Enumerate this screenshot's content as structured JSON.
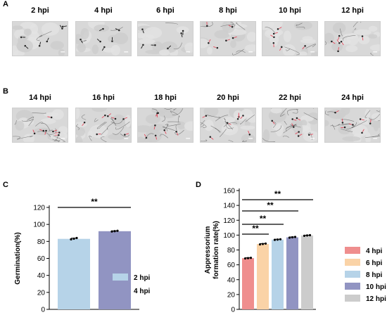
{
  "panels": {
    "A": {
      "letter": "A",
      "timepoints": [
        "2 hpi",
        "4 hpi",
        "6 hpi",
        "8 hpi",
        "10 hpi",
        "12 hpi"
      ],
      "arrow_colors": [
        "#111111",
        "#111111",
        "#111111",
        "#e8475a",
        "#e8475a",
        "#e8475a"
      ]
    },
    "B": {
      "letter": "B",
      "timepoints": [
        "14 hpi",
        "16 hpi",
        "18 hpi",
        "20 hpi",
        "22 hpi",
        "24 hpi"
      ],
      "arrow_colors": [
        "#e8475a",
        "#e8475a",
        "#e8475a",
        "#e8475a",
        "#e8475a",
        "#e8475a"
      ]
    },
    "C": {
      "letter": "C"
    },
    "D": {
      "letter": "D"
    }
  },
  "chart_data": [
    {
      "type": "bar",
      "panel": "C",
      "ylabel": "Germination(%)",
      "categories": [
        "2 hpi",
        "4 hpi"
      ],
      "values": [
        83,
        92
      ],
      "points": [
        [
          82.5,
          83.2,
          84.0
        ],
        [
          91.7,
          92.1,
          92.5
        ]
      ],
      "errors": [
        0.8,
        0.4
      ],
      "colors": [
        "#b6d3e8",
        "#9194c2"
      ],
      "ylim": [
        0,
        120
      ],
      "yticks": [
        0,
        20,
        40,
        60,
        80,
        100,
        120
      ],
      "legend": [
        "2 hpi",
        "4 hpi"
      ],
      "legend_position": "right",
      "significance": [
        {
          "from": 0,
          "to": 1,
          "label": "**"
        }
      ]
    },
    {
      "type": "bar",
      "panel": "D",
      "ylabel": "Appressorium formation rate(%)",
      "ylabel_lines": [
        "Appressorium",
        "formation rate(%)"
      ],
      "categories": [
        "4 hpi",
        "6 hpi",
        "8 hpi",
        "10 hpi",
        "12 hpi"
      ],
      "values": [
        69,
        88,
        94,
        97,
        99.5
      ],
      "points": [
        [
          68.6,
          69.0,
          69.4
        ],
        [
          87.5,
          88.0,
          88.6
        ],
        [
          93.6,
          94.0,
          94.4
        ],
        [
          96.6,
          97.1,
          97.5
        ],
        [
          99.1,
          99.5,
          99.9
        ]
      ],
      "errors": [
        0.5,
        0.6,
        0.4,
        0.5,
        0.4
      ],
      "colors": [
        "#ef8e8e",
        "#fad3a7",
        "#b6d3e8",
        "#9194c2",
        "#cccccc"
      ],
      "ylim": [
        0,
        160
      ],
      "yticks": [
        0,
        20,
        40,
        60,
        80,
        100,
        120,
        140,
        160
      ],
      "legend": [
        "4 hpi",
        "6 hpi",
        "8 hpi",
        "10 hpi",
        "12 hpi"
      ],
      "legend_position": "right",
      "significance": [
        {
          "from": 0,
          "to": 1,
          "label": "**"
        },
        {
          "from": 0,
          "to": 2,
          "label": "**"
        },
        {
          "from": 0,
          "to": 3,
          "label": "**"
        },
        {
          "from": 0,
          "to": 4,
          "label": "**"
        }
      ]
    }
  ]
}
